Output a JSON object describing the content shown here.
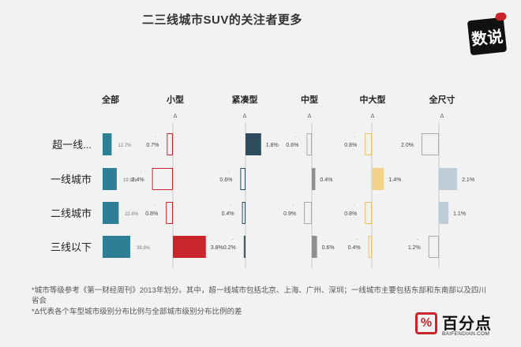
{
  "title": "二三线城市SUV的关注者更多",
  "logo_top_right": {
    "text": "数说",
    "icon": "speech-bubble-logo"
  },
  "brand": {
    "name": "百分点",
    "url": "BAIFENDIAN.COM",
    "icon": "percent-logo"
  },
  "notes": [
    "*城市等级参考《第一财经周刊》2013年划分。其中，超一线城市包括北京、上海、广州、深圳；一线城市主要包括东部和东南部以及四川省会",
    "*Δ代表各个车型城市级别分布比例与全部城市级别分布比例的差"
  ],
  "colors": {
    "all_bar": "#2e7e96",
    "pos_dark": "#2f4b5e",
    "neg_outline": "#c8252c",
    "pos_red": "#c8252c",
    "gray_bar": "#8f8f8f",
    "yellow_bar": "#f3d28a",
    "yellow_outline": "#e8c06a",
    "light_blue_bar": "#bfcdd6",
    "outline_gray": "#aaaaaa",
    "divider": "#c8c8c8"
  },
  "chart_data": {
    "type": "bar",
    "categories": [
      "超一线...",
      "一线城市",
      "二线城市",
      "三线以下"
    ],
    "base_series": {
      "name": "全部",
      "values": [
        12.7,
        19.9,
        22.6,
        38.9
      ],
      "labels": [
        "12.7%",
        "19.9%",
        "22.6%",
        "38.9%"
      ]
    },
    "delta_marker": "Δ",
    "delta_series": [
      {
        "name": "小型",
        "values": [
          -0.7,
          -2.4,
          -0.8,
          3.8
        ],
        "labels": [
          "0.7%",
          "2.4%",
          "0.8%",
          "3.8%"
        ]
      },
      {
        "name": "紧凑型",
        "values": [
          1.8,
          -0.6,
          -0.4,
          -0.2
        ],
        "labels": [
          "1.8%",
          "0.6%",
          "0.4%",
          "0.2%"
        ]
      },
      {
        "name": "中型",
        "values": [
          -0.6,
          0.4,
          -0.9,
          0.6
        ],
        "labels": [
          "0.6%",
          "0.4%",
          "0.9%",
          "0.6%"
        ]
      },
      {
        "name": "中大型",
        "values": [
          -0.8,
          1.4,
          -0.8,
          -0.4
        ],
        "labels": [
          "0.8%",
          "1.4%",
          "0.8%",
          "0.4%"
        ]
      },
      {
        "name": "全尺寸",
        "values": [
          -2.0,
          2.1,
          1.1,
          -1.2
        ],
        "labels": [
          "2.0%",
          "2.1%",
          "1.1%",
          "1.2%"
        ]
      }
    ]
  }
}
